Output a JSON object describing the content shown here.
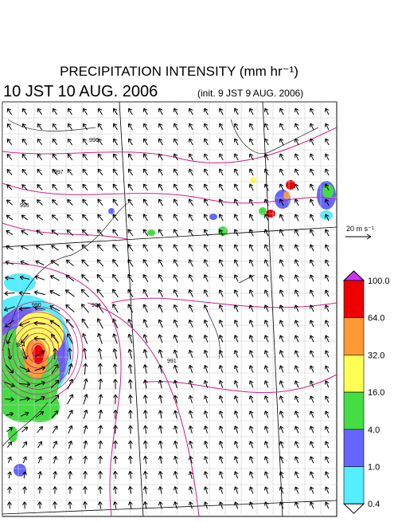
{
  "header": {
    "title": "PRECIPITATION INTENSITY (mm hr⁻¹)",
    "valid_time": "10 JST 10 AUG. 2006",
    "init_time": "(init. 9 JST 9 AUG. 2006)"
  },
  "reference_vector": {
    "label": "20 m s⁻¹"
  },
  "colorbar": {
    "levels": [
      {
        "label": "100.0",
        "color": "#ee0000"
      },
      {
        "label": "64.0",
        "color": "#ff9933"
      },
      {
        "label": "32.0",
        "color": "#ffff55"
      },
      {
        "label": "16.0",
        "color": "#44dd44"
      },
      {
        "label": "4.0",
        "color": "#6666ff"
      },
      {
        "label": "1.0",
        "color": "#55eeff"
      },
      {
        "label": "0.4",
        "color": "#ffffff"
      }
    ],
    "top_color": "#cc33ff"
  },
  "contour_labels": [
    "996",
    "997",
    "995",
    "990",
    "994",
    "984",
    "991"
  ]
}
